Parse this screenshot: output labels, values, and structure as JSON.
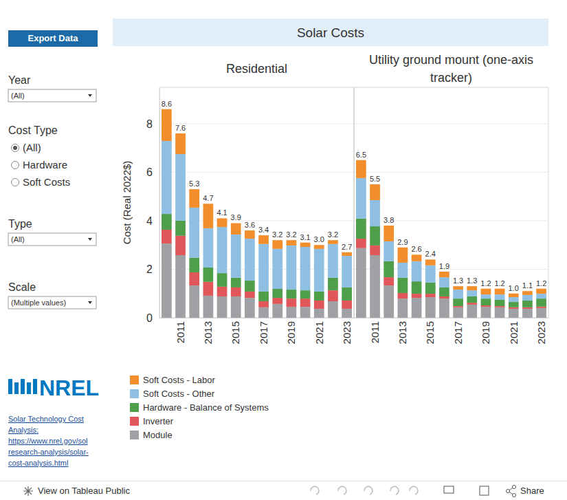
{
  "dashboard": {
    "title": "Solar Costs",
    "export_button": "Export Data",
    "filters": [
      {
        "label": "Year",
        "value": "(All)"
      },
      {
        "label": "Type",
        "value": "(All)"
      },
      {
        "label": "Scale",
        "value": "(Multiple values)"
      }
    ],
    "cost_type": {
      "label": "Cost Type",
      "options": [
        "(All)",
        "Hardware",
        "Soft Costs"
      ],
      "selected": "(All)"
    },
    "logo_text": "NREL",
    "link_lines": [
      "Solar Technology Cost",
      "Analysis:",
      "https://www.nrel.gov/sol",
      "research-analysis/solar-",
      "cost-analysis.html"
    ],
    "footer": {
      "view": "View on Tableau Public",
      "share": "Share"
    }
  },
  "chart_data": [
    {
      "type": "bar",
      "title": "Residential",
      "ylabel": "Cost (Real 2022$)",
      "stacked": true,
      "grid": true,
      "legend": "bottom",
      "categories": [
        null,
        "2011",
        null,
        "2013",
        null,
        "2015",
        null,
        "2017",
        null,
        "2019",
        null,
        "2021",
        null,
        "2023"
      ],
      "ylim": [
        0,
        9.5
      ],
      "yticks": [
        0,
        2,
        4,
        6,
        8
      ],
      "series": [
        {
          "name": "Module",
          "color": "#9fa1a5",
          "values": [
            3.06,
            2.58,
            1.33,
            0.91,
            0.88,
            0.88,
            0.82,
            0.43,
            0.57,
            0.45,
            0.45,
            0.37,
            0.68,
            0.37
          ]
        },
        {
          "name": "Inverter",
          "color": "#e15759",
          "values": [
            0.57,
            0.8,
            0.54,
            0.57,
            0.4,
            0.37,
            0.26,
            0.25,
            0.25,
            0.34,
            0.34,
            0.34,
            0.45,
            0.34
          ]
        },
        {
          "name": "Hardware - Balance of Systems",
          "color": "#4f9e4a",
          "values": [
            0.65,
            0.62,
            0.6,
            0.59,
            0.56,
            0.4,
            0.45,
            0.4,
            0.37,
            0.37,
            0.34,
            0.37,
            0.52,
            0.54
          ]
        },
        {
          "name": "Soft Costs - Other",
          "color": "#8fc0e3",
          "values": [
            3.01,
            2.75,
            2.07,
            1.62,
            1.9,
            1.78,
            1.73,
            1.96,
            1.65,
            1.82,
            1.79,
            1.76,
            1.39,
            1.3
          ]
        },
        {
          "name": "Soft Costs - Labor",
          "color": "#f28e2b",
          "values": [
            1.31,
            0.85,
            0.76,
            1.01,
            0.36,
            0.47,
            0.34,
            0.36,
            0.36,
            0.22,
            0.18,
            0.16,
            0.16,
            0.15
          ]
        }
      ],
      "totals": [
        8.6,
        7.6,
        5.3,
        4.7,
        4.1,
        3.9,
        3.6,
        3.4,
        3.2,
        3.2,
        3.1,
        3.0,
        3.2,
        2.7
      ],
      "total_labels": [
        "8.6",
        "7.6",
        "5.3",
        "4.7",
        "4.1",
        "3.9",
        "3.6",
        "3.4",
        "3.2",
        "3.2",
        "3.1",
        "3.0",
        "3.2",
        "2.7"
      ]
    },
    {
      "type": "bar",
      "title": "Utility ground mount (one-axis tracker)",
      "stacked": true,
      "grid": true,
      "tick_labels": "x",
      "categories": [
        null,
        "2011",
        null,
        "2013",
        null,
        "2015",
        null,
        "2017",
        null,
        "2019",
        null,
        "2021",
        null,
        "2023"
      ],
      "ylim": [
        0,
        9.5
      ],
      "yticks": [
        0,
        2,
        4,
        6,
        8
      ],
      "series": [
        {
          "name": "Module",
          "color": "#9fa1a5",
          "values": [
            2.87,
            2.58,
            1.33,
            0.79,
            0.82,
            0.85,
            0.79,
            0.43,
            0.54,
            0.45,
            0.43,
            0.37,
            0.37,
            0.4
          ]
        },
        {
          "name": "Inverter",
          "color": "#e15759",
          "values": [
            0.39,
            0.4,
            0.34,
            0.23,
            0.17,
            0.14,
            0.09,
            0.05,
            0.08,
            0.06,
            0.05,
            0.06,
            0.06,
            0.06
          ]
        },
        {
          "name": "Hardware - Balance of Systems",
          "color": "#4f9e4a",
          "values": [
            0.83,
            0.79,
            0.66,
            0.63,
            0.51,
            0.46,
            0.37,
            0.31,
            0.26,
            0.28,
            0.26,
            0.22,
            0.28,
            0.33
          ]
        },
        {
          "name": "Soft Costs - Other",
          "color": "#8fc0e3",
          "values": [
            1.67,
            1.08,
            0.82,
            0.62,
            0.83,
            0.71,
            0.42,
            0.37,
            0.25,
            0.17,
            0.22,
            0.2,
            0.23,
            0.2
          ]
        },
        {
          "name": "Soft Costs - Labor",
          "color": "#f28e2b",
          "values": [
            0.74,
            0.65,
            0.65,
            0.63,
            0.27,
            0.24,
            0.23,
            0.14,
            0.17,
            0.24,
            0.24,
            0.15,
            0.16,
            0.21
          ]
        }
      ],
      "totals": [
        6.5,
        5.5,
        3.8,
        2.9,
        2.6,
        2.4,
        1.9,
        1.3,
        1.3,
        1.2,
        1.2,
        1.0,
        1.1,
        1.2
      ],
      "total_labels": [
        "6.5",
        "5.5",
        "3.8",
        "2.9",
        "2.6",
        "2.4",
        "1.9",
        "1.3",
        "1.3",
        "1.2",
        "1.2",
        "1.0",
        "1.1",
        "1.2"
      ]
    }
  ]
}
